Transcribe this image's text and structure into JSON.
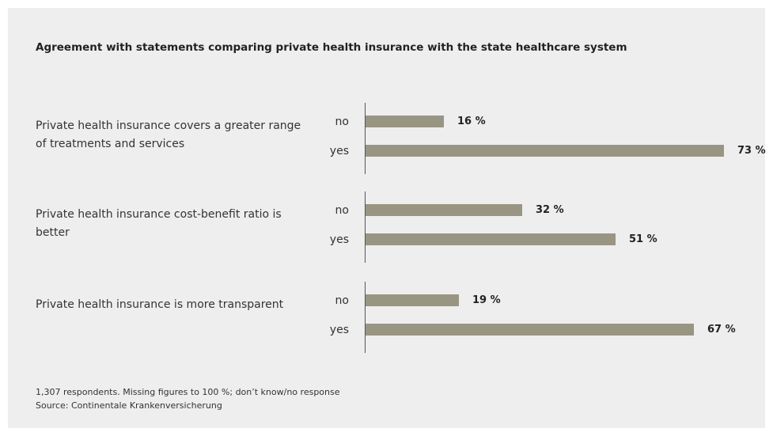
{
  "chart_data": {
    "type": "bar",
    "orientation": "horizontal",
    "title": "Agreement with statements comparing private health insurance with the state healthcare system",
    "categories": [
      "Private health insurance covers a greater range of treatments and services",
      "Private health insurance cost-benefit ratio is better",
      "Private health insurance is more transparent"
    ],
    "bar_labels": [
      "no",
      "yes"
    ],
    "series": [
      {
        "name": "no",
        "values": [
          16,
          32,
          19
        ]
      },
      {
        "name": "yes",
        "values": [
          73,
          51,
          67
        ]
      }
    ],
    "value_labels": [
      [
        "16 %",
        "73 %"
      ],
      [
        "32 %",
        "51 %"
      ],
      [
        "19 %",
        "67 %"
      ]
    ],
    "unit": "%",
    "xlim": [
      0,
      100
    ],
    "grid": false,
    "bar_color": "#999583",
    "notes": "1,307 respondents. Missing figures to 100 %; don’t know/no response",
    "source": "Source: Continentale Krankenversicherung"
  }
}
